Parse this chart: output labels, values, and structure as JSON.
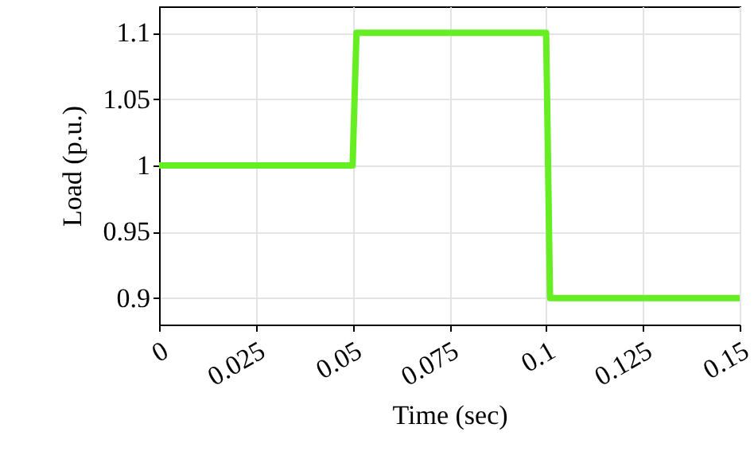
{
  "chart_data": {
    "type": "line",
    "xlabel": "Time (sec)",
    "ylabel": "Load (p.u.)",
    "x": [
      0,
      0.05,
      0.051,
      0.1,
      0.101,
      0.15
    ],
    "values": [
      1,
      1,
      1.1,
      1.1,
      0.9,
      0.9
    ],
    "color": "#66ee22",
    "xlim": [
      0,
      0.15
    ],
    "ylim": [
      0.88,
      1.12
    ],
    "xticks": [
      0,
      0.025,
      0.05,
      0.075,
      0.1,
      0.125,
      0.15
    ],
    "yticks": [
      0.9,
      0.95,
      1,
      1.05,
      1.1
    ],
    "grid": true,
    "marker": "none",
    "line_style": "solid"
  }
}
